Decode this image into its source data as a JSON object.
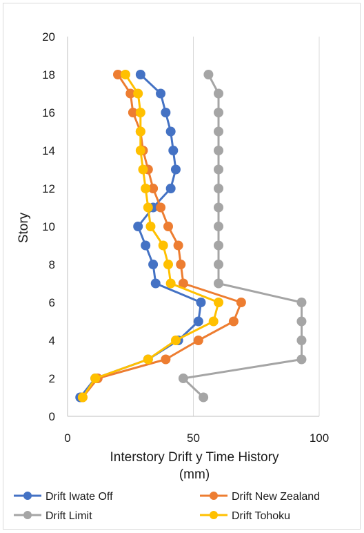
{
  "chart_data": {
    "type": "line",
    "title": "",
    "xlabel": "Interstory Drift y Time History (mm)",
    "xlabel_lines": [
      "Interstory Drift y Time History",
      "(mm)"
    ],
    "ylabel": "Story",
    "xlim": [
      0,
      100
    ],
    "ylim": [
      0,
      20
    ],
    "x_ticks": [
      0,
      50,
      100
    ],
    "y_ticks": [
      0,
      2,
      4,
      6,
      8,
      10,
      12,
      14,
      16,
      18,
      20
    ],
    "x_grid": true,
    "y_grid": false,
    "legend_position": "bottom",
    "series": [
      {
        "name": "Drift Iwate Off",
        "color": "#4472C4",
        "points": [
          [
            5,
            1
          ],
          [
            11,
            2
          ],
          [
            32,
            3
          ],
          [
            44,
            4
          ],
          [
            52,
            5
          ],
          [
            53,
            6
          ],
          [
            35,
            7
          ],
          [
            34,
            8
          ],
          [
            31,
            9
          ],
          [
            28,
            10
          ],
          [
            34,
            11
          ],
          [
            41,
            12
          ],
          [
            43,
            13
          ],
          [
            42,
            14
          ],
          [
            41,
            15
          ],
          [
            39,
            16
          ],
          [
            37,
            17
          ],
          [
            29,
            18
          ]
        ]
      },
      {
        "name": "Drift New Zealand",
        "color": "#ED7D31",
        "points": [
          [
            6,
            1
          ],
          [
            12,
            2
          ],
          [
            39,
            3
          ],
          [
            52,
            4
          ],
          [
            66,
            5
          ],
          [
            69,
            6
          ],
          [
            46,
            7
          ],
          [
            45,
            8
          ],
          [
            44,
            9
          ],
          [
            40,
            10
          ],
          [
            37,
            11
          ],
          [
            34,
            12
          ],
          [
            32,
            13
          ],
          [
            30,
            14
          ],
          [
            29,
            15
          ],
          [
            26,
            16
          ],
          [
            25,
            17
          ],
          [
            20,
            18
          ]
        ]
      },
      {
        "name": "Drift Limit",
        "color": "#A5A5A5",
        "points": [
          [
            54,
            1
          ],
          [
            46,
            2
          ],
          [
            93,
            3
          ],
          [
            93,
            4
          ],
          [
            93,
            5
          ],
          [
            93,
            6
          ],
          [
            60,
            7
          ],
          [
            60,
            8
          ],
          [
            60,
            9
          ],
          [
            60,
            10
          ],
          [
            60,
            11
          ],
          [
            60,
            12
          ],
          [
            60,
            13
          ],
          [
            60,
            14
          ],
          [
            60,
            15
          ],
          [
            60,
            16
          ],
          [
            60,
            17
          ],
          [
            56,
            18
          ]
        ]
      },
      {
        "name": "Drift Tohoku",
        "color": "#FFC000",
        "points": [
          [
            6,
            1
          ],
          [
            11,
            2
          ],
          [
            32,
            3
          ],
          [
            43,
            4
          ],
          [
            58,
            5
          ],
          [
            60,
            6
          ],
          [
            41,
            7
          ],
          [
            40,
            8
          ],
          [
            38,
            9
          ],
          [
            33,
            10
          ],
          [
            32,
            11
          ],
          [
            31,
            12
          ],
          [
            30,
            13
          ],
          [
            29,
            14
          ],
          [
            29,
            15
          ],
          [
            29,
            16
          ],
          [
            28,
            17
          ],
          [
            23,
            18
          ]
        ]
      }
    ]
  }
}
